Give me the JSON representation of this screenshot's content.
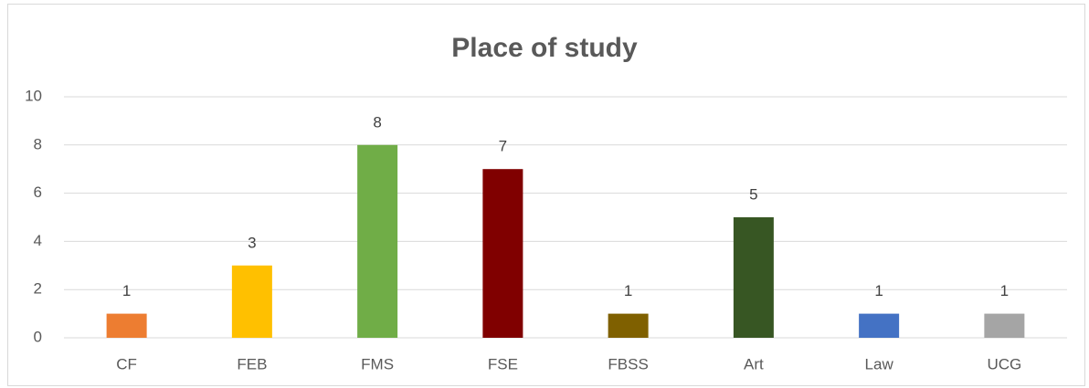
{
  "chart_data": {
    "type": "bar",
    "title": "Place of study",
    "categories": [
      "CF",
      "FEB",
      "FMS",
      "FSE",
      "FBSS",
      "Art",
      "Law",
      "UCG"
    ],
    "values": [
      1,
      3,
      8,
      7,
      1,
      5,
      1,
      1
    ],
    "colors": [
      "#ed7d31",
      "#ffc000",
      "#70ad47",
      "#800000",
      "#7f6000",
      "#375623",
      "#4472c4",
      "#a5a5a5"
    ],
    "ylim": [
      0,
      10
    ],
    "yticks": [
      0,
      2,
      4,
      6,
      8,
      10
    ],
    "grid": true
  }
}
